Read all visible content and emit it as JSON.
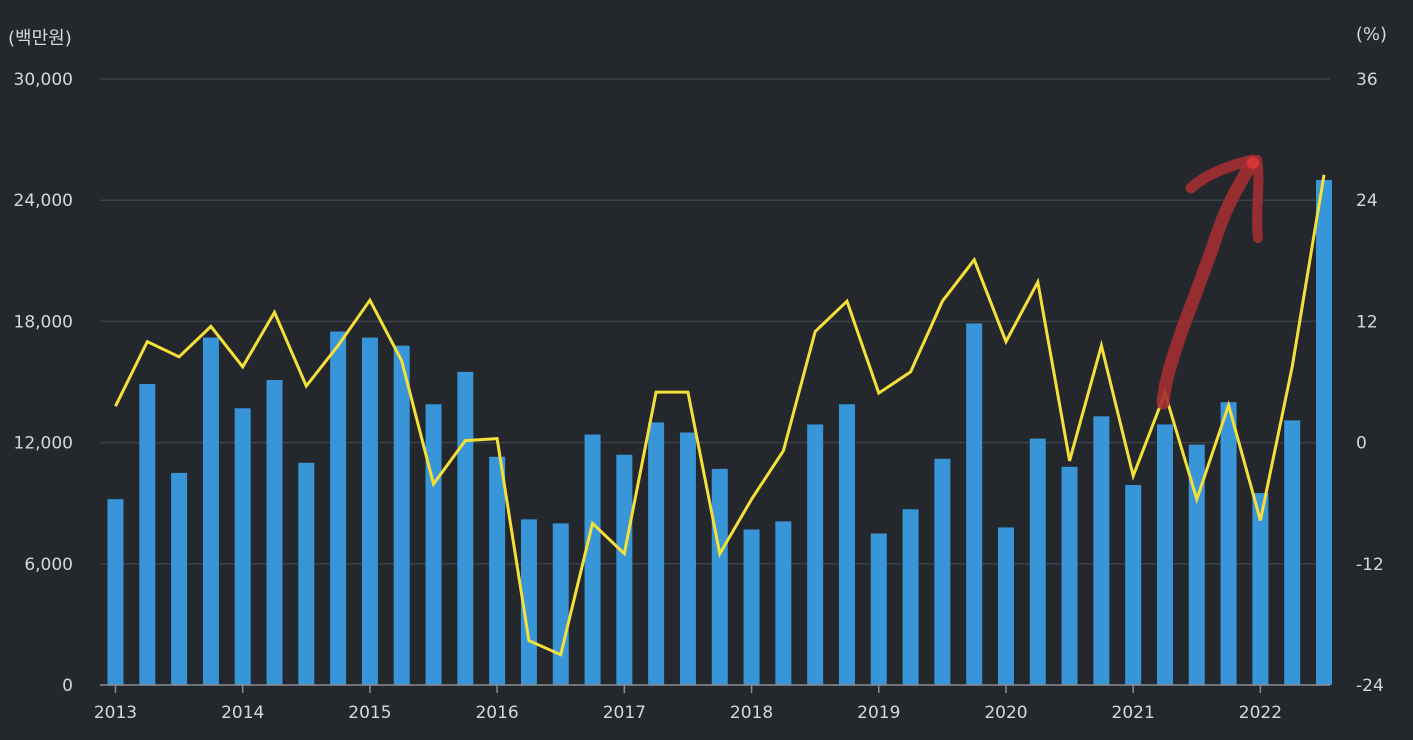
{
  "chart_data": {
    "type": "bar",
    "x_labels": [
      "2013",
      "2014",
      "2015",
      "2016",
      "2017",
      "2018",
      "2019",
      "2020",
      "2021",
      "2022"
    ],
    "y_left_label": "(백만원)",
    "y_right_label": "(%)",
    "y_left_ticks": [
      "0",
      "6,000",
      "12,000",
      "18,000",
      "24,000",
      "30,000"
    ],
    "y_right_ticks": [
      "-24",
      "-12",
      "0",
      "12",
      "24",
      "36"
    ],
    "y_left_range": [
      0,
      30000
    ],
    "y_right_range": [
      -24,
      36
    ],
    "grid": true,
    "legend": "none",
    "series": [
      {
        "type": "bar",
        "axis": "left",
        "color": "#3795d8",
        "values": [
          9200,
          14900,
          10500,
          17200,
          13700,
          15100,
          11000,
          17500,
          17200,
          16800,
          13900,
          15500,
          11300,
          8200,
          8000,
          12400,
          11400,
          13000,
          12500,
          10700,
          7700,
          8100,
          12900,
          13900,
          7500,
          8700,
          11200,
          17900,
          7800,
          12200,
          10800,
          13300,
          9900,
          12900,
          11900,
          14000,
          9500,
          13100,
          25000
        ]
      },
      {
        "type": "line",
        "axis": "right",
        "color": "#f5e03a",
        "values": [
          3.6,
          10.0,
          8.5,
          11.5,
          7.5,
          12.9,
          5.6,
          9.6,
          14.1,
          8.1,
          -4.1,
          0.2,
          0.4,
          -19.6,
          -21.0,
          -8.0,
          -11.0,
          5.0,
          5.0,
          -11.0,
          -5.6,
          -0.8,
          11.0,
          14.0,
          4.9,
          7.0,
          14.0,
          18.1,
          10.0,
          15.9,
          -1.8,
          9.6,
          -3.3,
          4.9,
          -5.6,
          3.7,
          -7.7,
          7.5,
          26.5
        ]
      }
    ],
    "annotation": {
      "type": "hand-drawn-arrow",
      "color": "#a32f32",
      "description_hidden": true
    }
  }
}
